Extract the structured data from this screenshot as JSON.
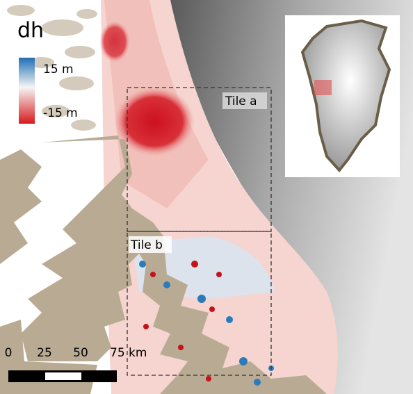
{
  "legend": {
    "title": "dh",
    "max_label": "15 m",
    "min_label": "-15 m"
  },
  "tiles": [
    "Tile a",
    "Tile b"
  ],
  "scale_bar": {
    "labels": [
      "0",
      "25",
      "50",
      "75 km"
    ]
  }
}
